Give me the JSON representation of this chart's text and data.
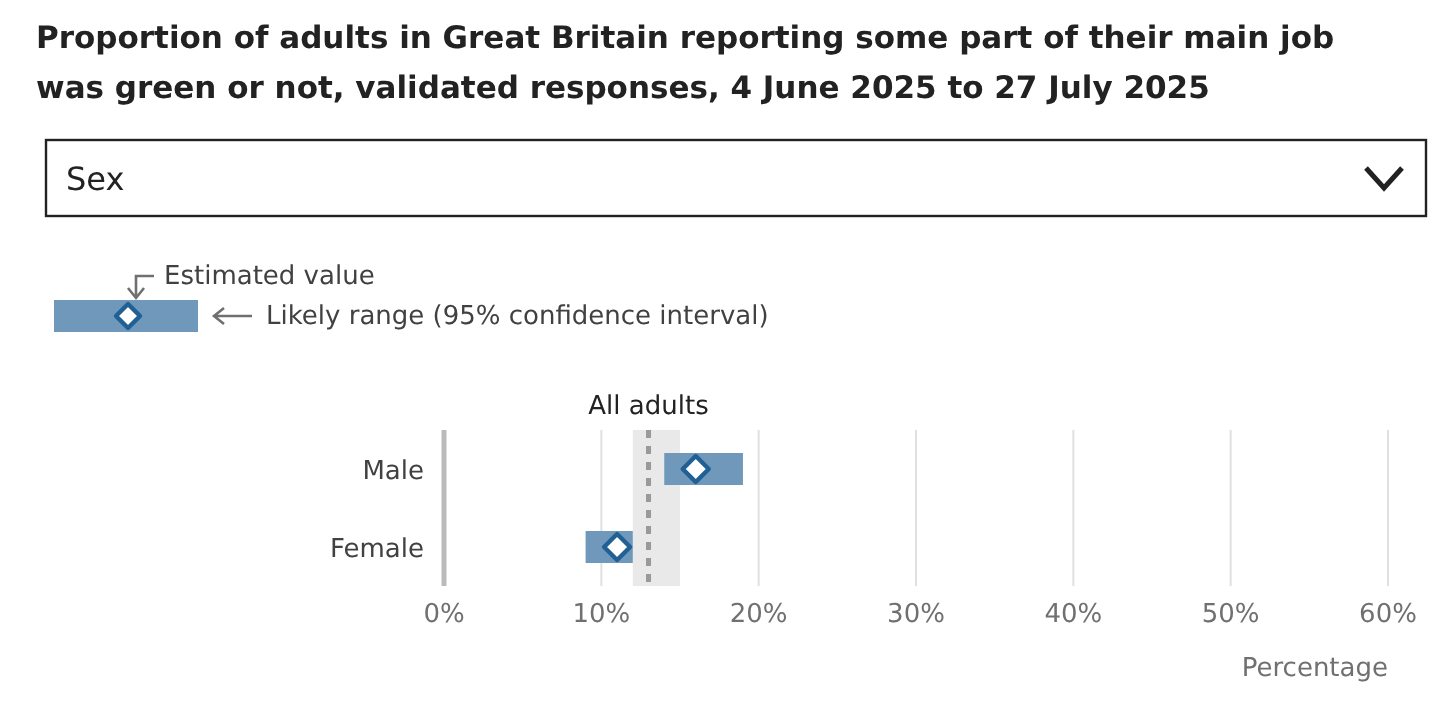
{
  "chart_data": {
    "type": "bar",
    "title": "Proportion of adults in Great Britain reporting some part of their main job was green or not, validated responses, 4 June 2025 to 27 July 2025",
    "subtitle": "Sex",
    "orientation": "horizontal",
    "categories": [
      "Male",
      "Female"
    ],
    "series": [
      {
        "type": "bar",
        "color": "#6f98bb",
        "base": [
          14,
          9
        ],
        "values": [
          5,
          3
        ]
      },
      {
        "type": "scatter",
        "color": "#206095",
        "values": [
          16,
          11
        ]
      }
    ],
    "marker": "diamond",
    "xlabel": "Percentage",
    "xlim": [
      0,
      60
    ],
    "xticks": [
      {
        "value": 0,
        "label": "0%"
      },
      {
        "value": 10,
        "label": "10%"
      },
      {
        "value": 20,
        "label": "20%"
      },
      {
        "value": 30,
        "label": "30%"
      },
      {
        "value": 40,
        "label": "40%"
      },
      {
        "value": 50,
        "label": "50%"
      },
      {
        "value": 60,
        "label": "60%"
      }
    ],
    "grid": "x",
    "ref_lines": [
      {
        "axis": "x",
        "value": 13,
        "label": "All adults",
        "line_style": "dashed",
        "color": "#999999"
      }
    ],
    "bands": [
      {
        "axis": "x",
        "from": 12,
        "to": 15,
        "color": "#e9e9e9"
      }
    ],
    "annotations": [
      "Estimated value",
      "Likely range (95% confidence interval)"
    ]
  }
}
